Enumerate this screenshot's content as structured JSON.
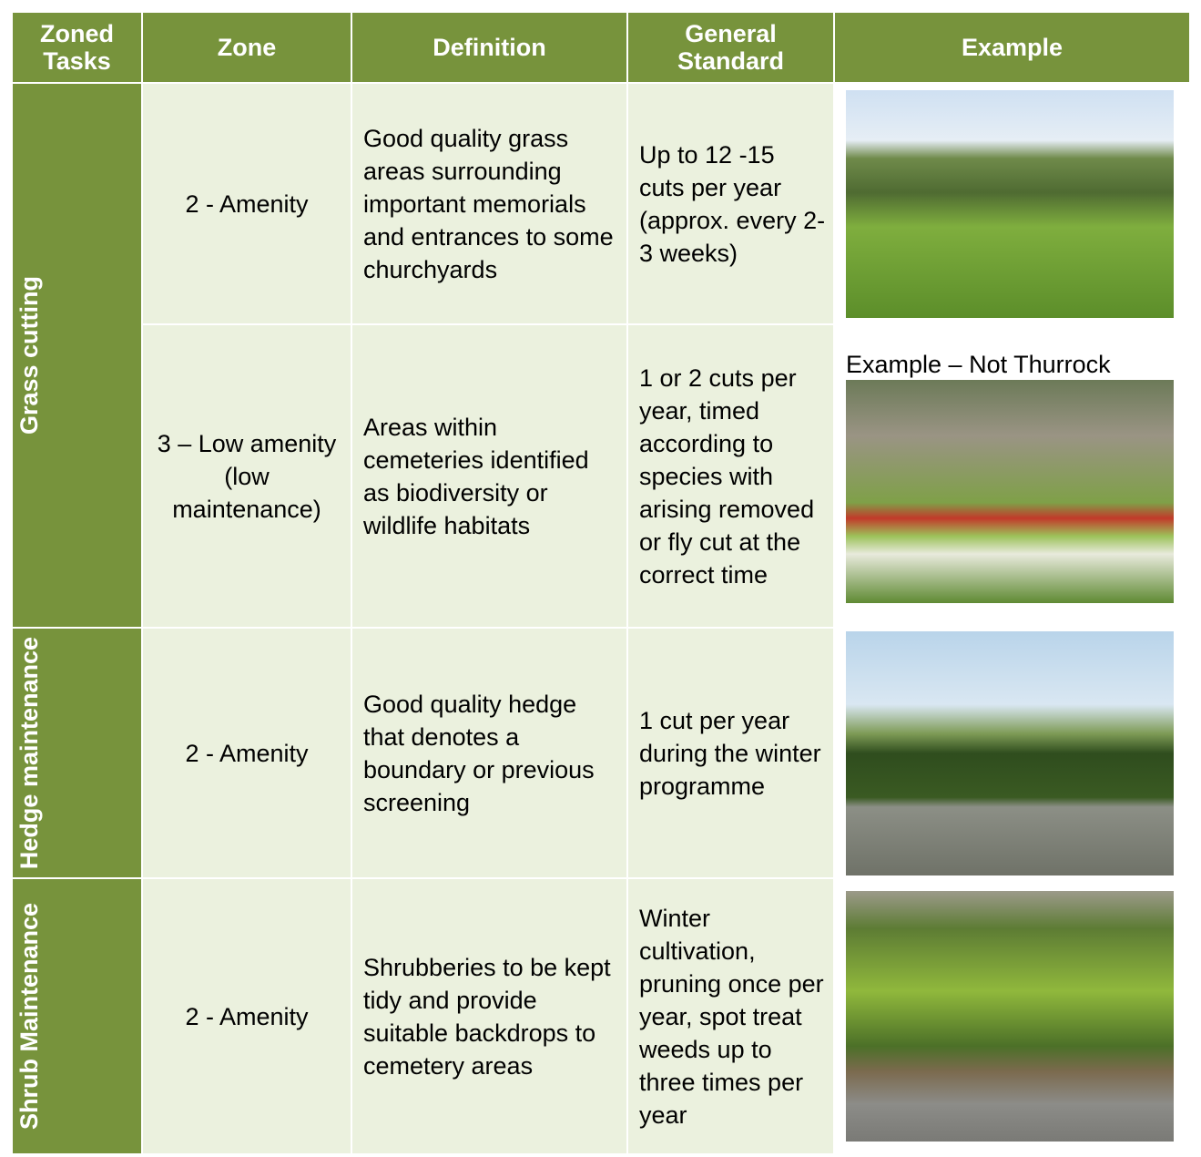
{
  "table": {
    "header": [
      "Zoned Tasks",
      "Zone",
      "Definition",
      "General Standard",
      "Example"
    ],
    "groups": [
      {
        "task": "Grass cutting",
        "rows": [
          {
            "zone": "2 - Amenity",
            "definition": "Good quality grass areas surrounding important memorials and entrances to some churchyards",
            "standard": "Up to 12 -15 cuts per year (approx. every 2-3 weeks)"
          },
          {
            "zone": "3 – Low amenity (low maintenance)",
            "definition": "Areas within cemeteries identified as biodiversity or wildlife habitats",
            "standard": "1 or 2 cuts per year, timed according to species with arising removed or fly cut at the correct time",
            "caption": "Example – Not Thurrock"
          }
        ]
      },
      {
        "task": "Hedge maintenance",
        "rows": [
          {
            "zone": "2 - Amenity",
            "definition": "Good quality hedge that denotes a boundary or previous screening",
            "standard": "1 cut per year during the winter programme"
          }
        ]
      },
      {
        "task": "Shrub Maintenance",
        "rows": [
          {
            "zone": "2 - Amenity",
            "definition": "Shrubberies to be kept tidy and provide suitable backdrops to cemetery areas",
            "standard": "Winter cultivation, pruning once per year, spot treat weeds up to three times per year"
          }
        ]
      }
    ]
  }
}
